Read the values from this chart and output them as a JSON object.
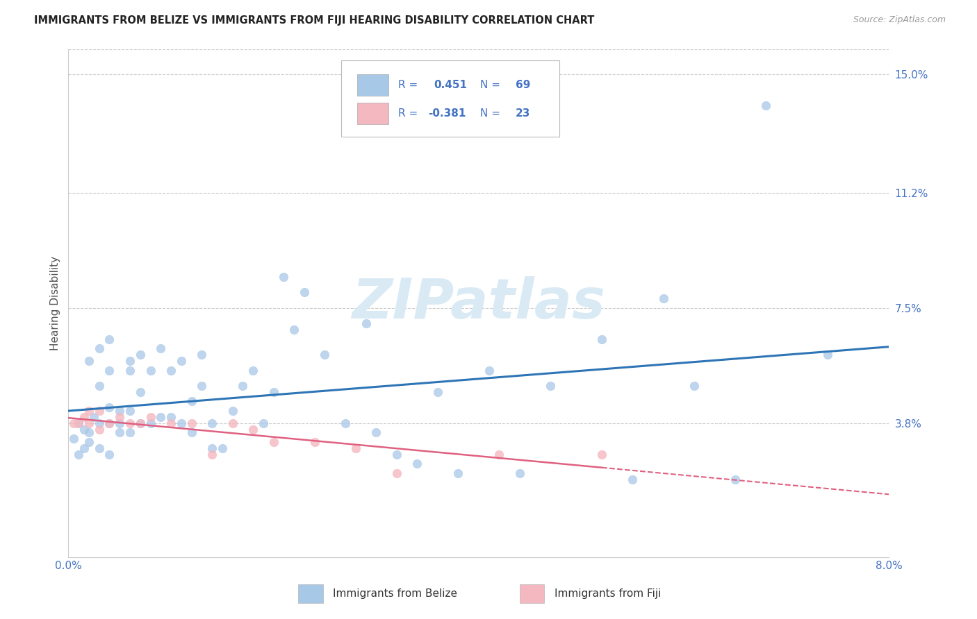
{
  "title": "IMMIGRANTS FROM BELIZE VS IMMIGRANTS FROM FIJI HEARING DISABILITY CORRELATION CHART",
  "source": "Source: ZipAtlas.com",
  "ylabel": "Hearing Disability",
  "xlim": [
    0.0,
    0.08
  ],
  "ylim": [
    -0.005,
    0.158
  ],
  "xticks": [
    0.0,
    0.01,
    0.02,
    0.03,
    0.04,
    0.05,
    0.06,
    0.07,
    0.08
  ],
  "xticklabels": [
    "0.0%",
    "",
    "",
    "",
    "",
    "",
    "",
    "",
    "8.0%"
  ],
  "ytick_positions": [
    0.038,
    0.075,
    0.112,
    0.15
  ],
  "ytick_labels": [
    "3.8%",
    "7.5%",
    "11.2%",
    "15.0%"
  ],
  "belize_color": "#a8c8e8",
  "fiji_color": "#f4b8c0",
  "belize_line_color": "#2e75b6",
  "fiji_line_color": "#e06080",
  "tick_color": "#4472c4",
  "text_color": "#4472c4",
  "grid_color": "#cccccc",
  "watermark_text": "ZIPatlas",
  "watermark_color": "#daeaf5",
  "legend_text_color": "#4472c4",
  "belize_R": "0.451",
  "belize_N": "69",
  "fiji_R": "-0.381",
  "fiji_N": "23",
  "belize_x": [
    0.0005,
    0.001,
    0.001,
    0.0015,
    0.0015,
    0.002,
    0.002,
    0.002,
    0.0025,
    0.003,
    0.003,
    0.003,
    0.003,
    0.004,
    0.004,
    0.004,
    0.004,
    0.004,
    0.005,
    0.005,
    0.005,
    0.006,
    0.006,
    0.006,
    0.006,
    0.007,
    0.007,
    0.007,
    0.008,
    0.008,
    0.009,
    0.009,
    0.01,
    0.01,
    0.011,
    0.011,
    0.012,
    0.012,
    0.013,
    0.013,
    0.014,
    0.014,
    0.015,
    0.016,
    0.017,
    0.018,
    0.019,
    0.02,
    0.021,
    0.022,
    0.023,
    0.025,
    0.027,
    0.029,
    0.03,
    0.032,
    0.034,
    0.036,
    0.038,
    0.041,
    0.044,
    0.047,
    0.052,
    0.055,
    0.058,
    0.061,
    0.065,
    0.068,
    0.074
  ],
  "belize_y": [
    0.033,
    0.038,
    0.028,
    0.036,
    0.03,
    0.058,
    0.032,
    0.035,
    0.04,
    0.038,
    0.062,
    0.05,
    0.03,
    0.065,
    0.055,
    0.043,
    0.038,
    0.028,
    0.038,
    0.042,
    0.035,
    0.055,
    0.058,
    0.042,
    0.035,
    0.06,
    0.048,
    0.038,
    0.055,
    0.038,
    0.04,
    0.062,
    0.055,
    0.04,
    0.058,
    0.038,
    0.045,
    0.035,
    0.06,
    0.05,
    0.038,
    0.03,
    0.03,
    0.042,
    0.05,
    0.055,
    0.038,
    0.048,
    0.085,
    0.068,
    0.08,
    0.06,
    0.038,
    0.07,
    0.035,
    0.028,
    0.025,
    0.048,
    0.022,
    0.055,
    0.022,
    0.05,
    0.065,
    0.02,
    0.078,
    0.05,
    0.02,
    0.14,
    0.06
  ],
  "fiji_x": [
    0.0005,
    0.001,
    0.0015,
    0.002,
    0.002,
    0.003,
    0.003,
    0.004,
    0.005,
    0.006,
    0.007,
    0.008,
    0.01,
    0.012,
    0.014,
    0.016,
    0.018,
    0.02,
    0.024,
    0.028,
    0.032,
    0.042,
    0.052
  ],
  "fiji_y": [
    0.038,
    0.038,
    0.04,
    0.042,
    0.038,
    0.042,
    0.036,
    0.038,
    0.04,
    0.038,
    0.038,
    0.04,
    0.038,
    0.038,
    0.028,
    0.038,
    0.036,
    0.032,
    0.032,
    0.03,
    0.022,
    0.028,
    0.028
  ]
}
